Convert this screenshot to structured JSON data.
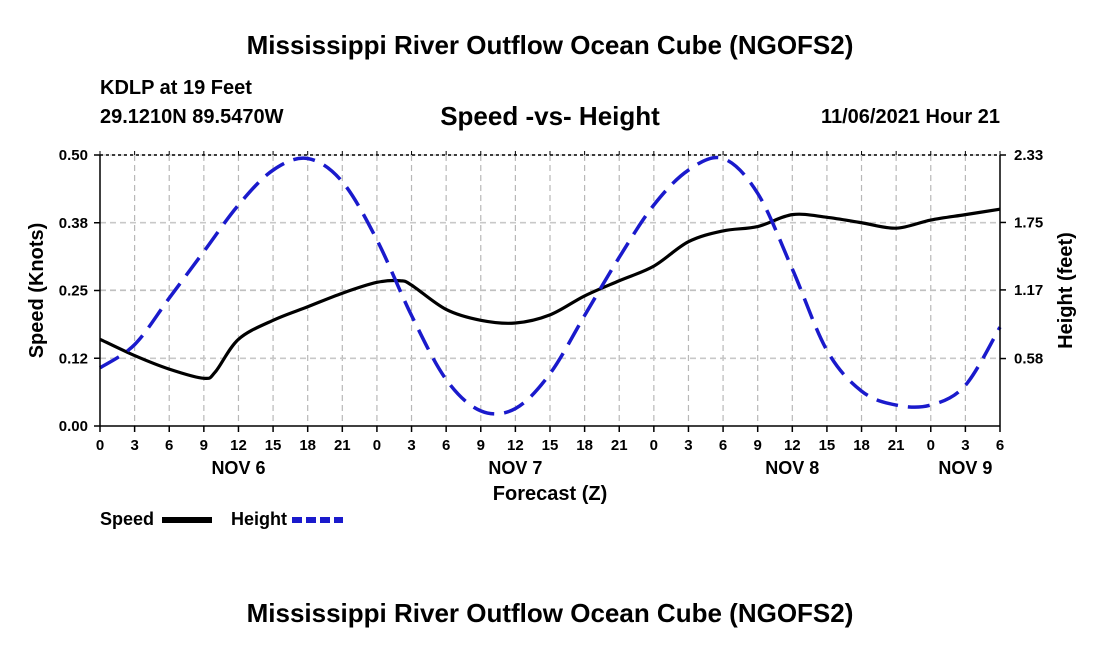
{
  "page": {
    "title": "Mississippi River Outflow Ocean Cube (NGOFS2)",
    "footer_title": "Mississippi River Outflow Ocean Cube (NGOFS2)",
    "station": "KDLP at 19 Feet",
    "coords": "29.1210N  89.5470W",
    "datetime": "11/06/2021 Hour 21"
  },
  "chart_data": {
    "type": "line",
    "title": "Speed -vs- Height",
    "xlabel": "Forecast (Z)",
    "ylabel": "Speed (Knots)",
    "y2label": "Height (feet)",
    "ylim": [
      0,
      0.5
    ],
    "y2lim": [
      0,
      2.33
    ],
    "yticks": [
      "0.00",
      "0.12",
      "0.25",
      "0.38",
      "0.50"
    ],
    "ytick_values": [
      0,
      0.125,
      0.25,
      0.375,
      0.5
    ],
    "y2ticks": [
      "0.58",
      "1.17",
      "1.75",
      "2.33"
    ],
    "y2tick_values": [
      0.58,
      1.17,
      1.75,
      2.33
    ],
    "xlim": [
      0,
      78
    ],
    "xticks": [
      "0",
      "3",
      "6",
      "9",
      "12",
      "15",
      "18",
      "21",
      "0",
      "3",
      "6",
      "9",
      "12",
      "15",
      "18",
      "21",
      "0",
      "3",
      "6",
      "9",
      "12",
      "15",
      "18",
      "21",
      "0",
      "3",
      "6"
    ],
    "day_labels": [
      {
        "label": "NOV 6",
        "x": 12
      },
      {
        "label": "NOV 7",
        "x": 36
      },
      {
        "label": "NOV 8",
        "x": 60
      },
      {
        "label": "NOV 9",
        "x": 75
      }
    ],
    "grid": true,
    "series": [
      {
        "name": "Speed",
        "color": "#000000",
        "axis": "left",
        "dash": "solid",
        "x": [
          0,
          3,
          6,
          9,
          10,
          12,
          15,
          18,
          21,
          24,
          26,
          27,
          30,
          33,
          36,
          39,
          42,
          45,
          48,
          51,
          54,
          57,
          60,
          63,
          66,
          69,
          72,
          75,
          78
        ],
        "values": [
          0.16,
          0.13,
          0.105,
          0.088,
          0.1,
          0.16,
          0.195,
          0.22,
          0.245,
          0.265,
          0.268,
          0.26,
          0.215,
          0.195,
          0.19,
          0.205,
          0.24,
          0.268,
          0.295,
          0.34,
          0.36,
          0.368,
          0.39,
          0.385,
          0.375,
          0.365,
          0.38,
          0.39,
          0.4
        ]
      },
      {
        "name": "Height",
        "color": "#1a1acc",
        "axis": "right",
        "dash": "dashed",
        "x": [
          0,
          3,
          6,
          9,
          12,
          15,
          18,
          21,
          24,
          27,
          30,
          33,
          36,
          39,
          42,
          45,
          48,
          51,
          54,
          57,
          60,
          63,
          66,
          69,
          72,
          75,
          78
        ],
        "values": [
          0.5,
          0.7,
          1.1,
          1.5,
          1.9,
          2.2,
          2.3,
          2.1,
          1.6,
          0.95,
          0.4,
          0.13,
          0.15,
          0.45,
          0.95,
          1.45,
          1.9,
          2.2,
          2.3,
          2.0,
          1.35,
          0.65,
          0.3,
          0.18,
          0.18,
          0.35,
          0.85
        ]
      }
    ],
    "legend": [
      "Speed",
      "Height"
    ]
  }
}
